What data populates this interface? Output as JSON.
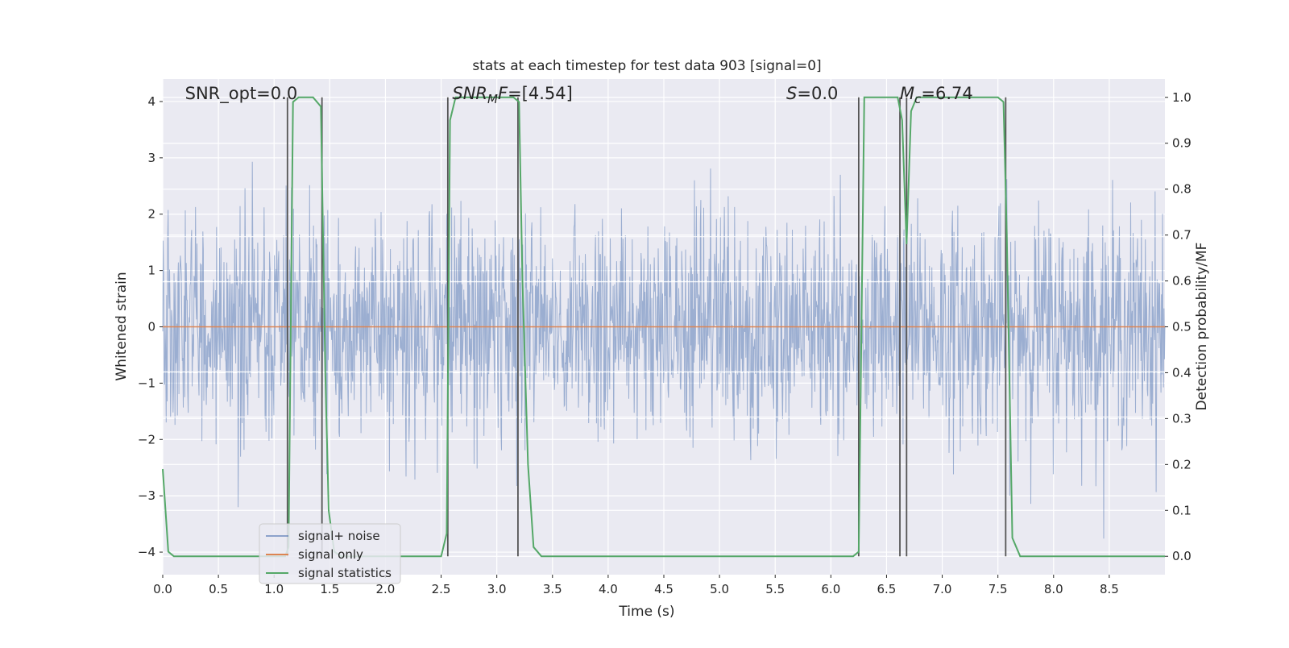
{
  "chart_data": {
    "type": "line",
    "title": "stats at each timestep for test data 903 [signal=0]",
    "xlabel": "Time (s)",
    "ylabel": "Whitened strain",
    "y2label": "Detection probability/MF",
    "xlim": [
      0.0,
      9.0
    ],
    "ylim": [
      -4.4,
      4.4
    ],
    "y2lim": [
      -0.04,
      1.04
    ],
    "x_ticks": [
      "0.0",
      "0.5",
      "1.0",
      "1.5",
      "2.0",
      "2.5",
      "3.0",
      "3.5",
      "4.0",
      "4.5",
      "5.0",
      "5.5",
      "6.0",
      "6.5",
      "7.0",
      "7.5",
      "8.0",
      "8.5"
    ],
    "y_ticks": [
      "4",
      "3",
      "2",
      "1",
      "0",
      "−1",
      "−2",
      "−3",
      "−4"
    ],
    "y2_ticks": [
      "1.0",
      "0.9",
      "0.8",
      "0.7",
      "0.6",
      "0.5",
      "0.4",
      "0.3",
      "0.2",
      "0.1",
      "0.0"
    ],
    "grid": true,
    "legend_position": "lower-left",
    "legend": [
      {
        "name": "signal+ noise",
        "color": "#4c72b0"
      },
      {
        "name": "signal only",
        "color": "#dd8452"
      },
      {
        "name": "signal statistics",
        "color": "#55a868"
      }
    ],
    "annotations": [
      {
        "text": "SNR_opt=0.0",
        "x": 0.2,
        "y": 4.1
      },
      {
        "text": "SNR_MF=[4.54]",
        "x": 2.6,
        "y": 4.1
      },
      {
        "text": "S=0.0",
        "x": 5.6,
        "y": 4.1
      },
      {
        "text": "M_c=6.74",
        "x": 6.62,
        "y": 4.1
      }
    ],
    "series": [
      {
        "name": "signal+ noise",
        "axis": "left",
        "color": "#4c72b0",
        "description_band": {
          "typical_abs": 1.6,
          "max_abs": 4.1,
          "samples": 2048
        }
      },
      {
        "name": "signal only",
        "axis": "left",
        "color": "#dd8452",
        "x": [
          0.0,
          9.0
        ],
        "y": [
          0.0,
          0.0
        ]
      },
      {
        "name": "signal statistics",
        "axis": "right",
        "color": "#55a868",
        "x": [
          0.0,
          0.05,
          0.1,
          1.1,
          1.13,
          1.17,
          1.22,
          1.35,
          1.42,
          1.46,
          1.49,
          1.54,
          1.6,
          2.5,
          2.55,
          2.58,
          2.63,
          3.15,
          3.2,
          3.23,
          3.28,
          3.33,
          3.4,
          6.2,
          6.25,
          6.3,
          6.6,
          6.64,
          6.68,
          6.72,
          6.77,
          6.85,
          7.5,
          7.55,
          7.58,
          7.63,
          7.7,
          9.0
        ],
        "y": [
          0.19,
          0.01,
          0.0,
          0.0,
          0.02,
          0.99,
          1.0,
          1.0,
          0.98,
          0.4,
          0.1,
          0.01,
          0.0,
          0.0,
          0.05,
          0.95,
          1.0,
          1.0,
          0.99,
          0.6,
          0.2,
          0.02,
          0.0,
          0.0,
          0.01,
          1.0,
          1.0,
          0.95,
          0.68,
          0.97,
          1.0,
          1.0,
          1.0,
          0.99,
          0.7,
          0.04,
          0.0,
          0.0
        ]
      }
    ],
    "vertical_lines": [
      1.12,
      1.43,
      2.56,
      3.19,
      6.25,
      6.62,
      6.68,
      7.57
    ],
    "colors": {
      "plot_background": "#eaeaf2",
      "grid": "#ffffff",
      "vlines": "#555555"
    }
  }
}
